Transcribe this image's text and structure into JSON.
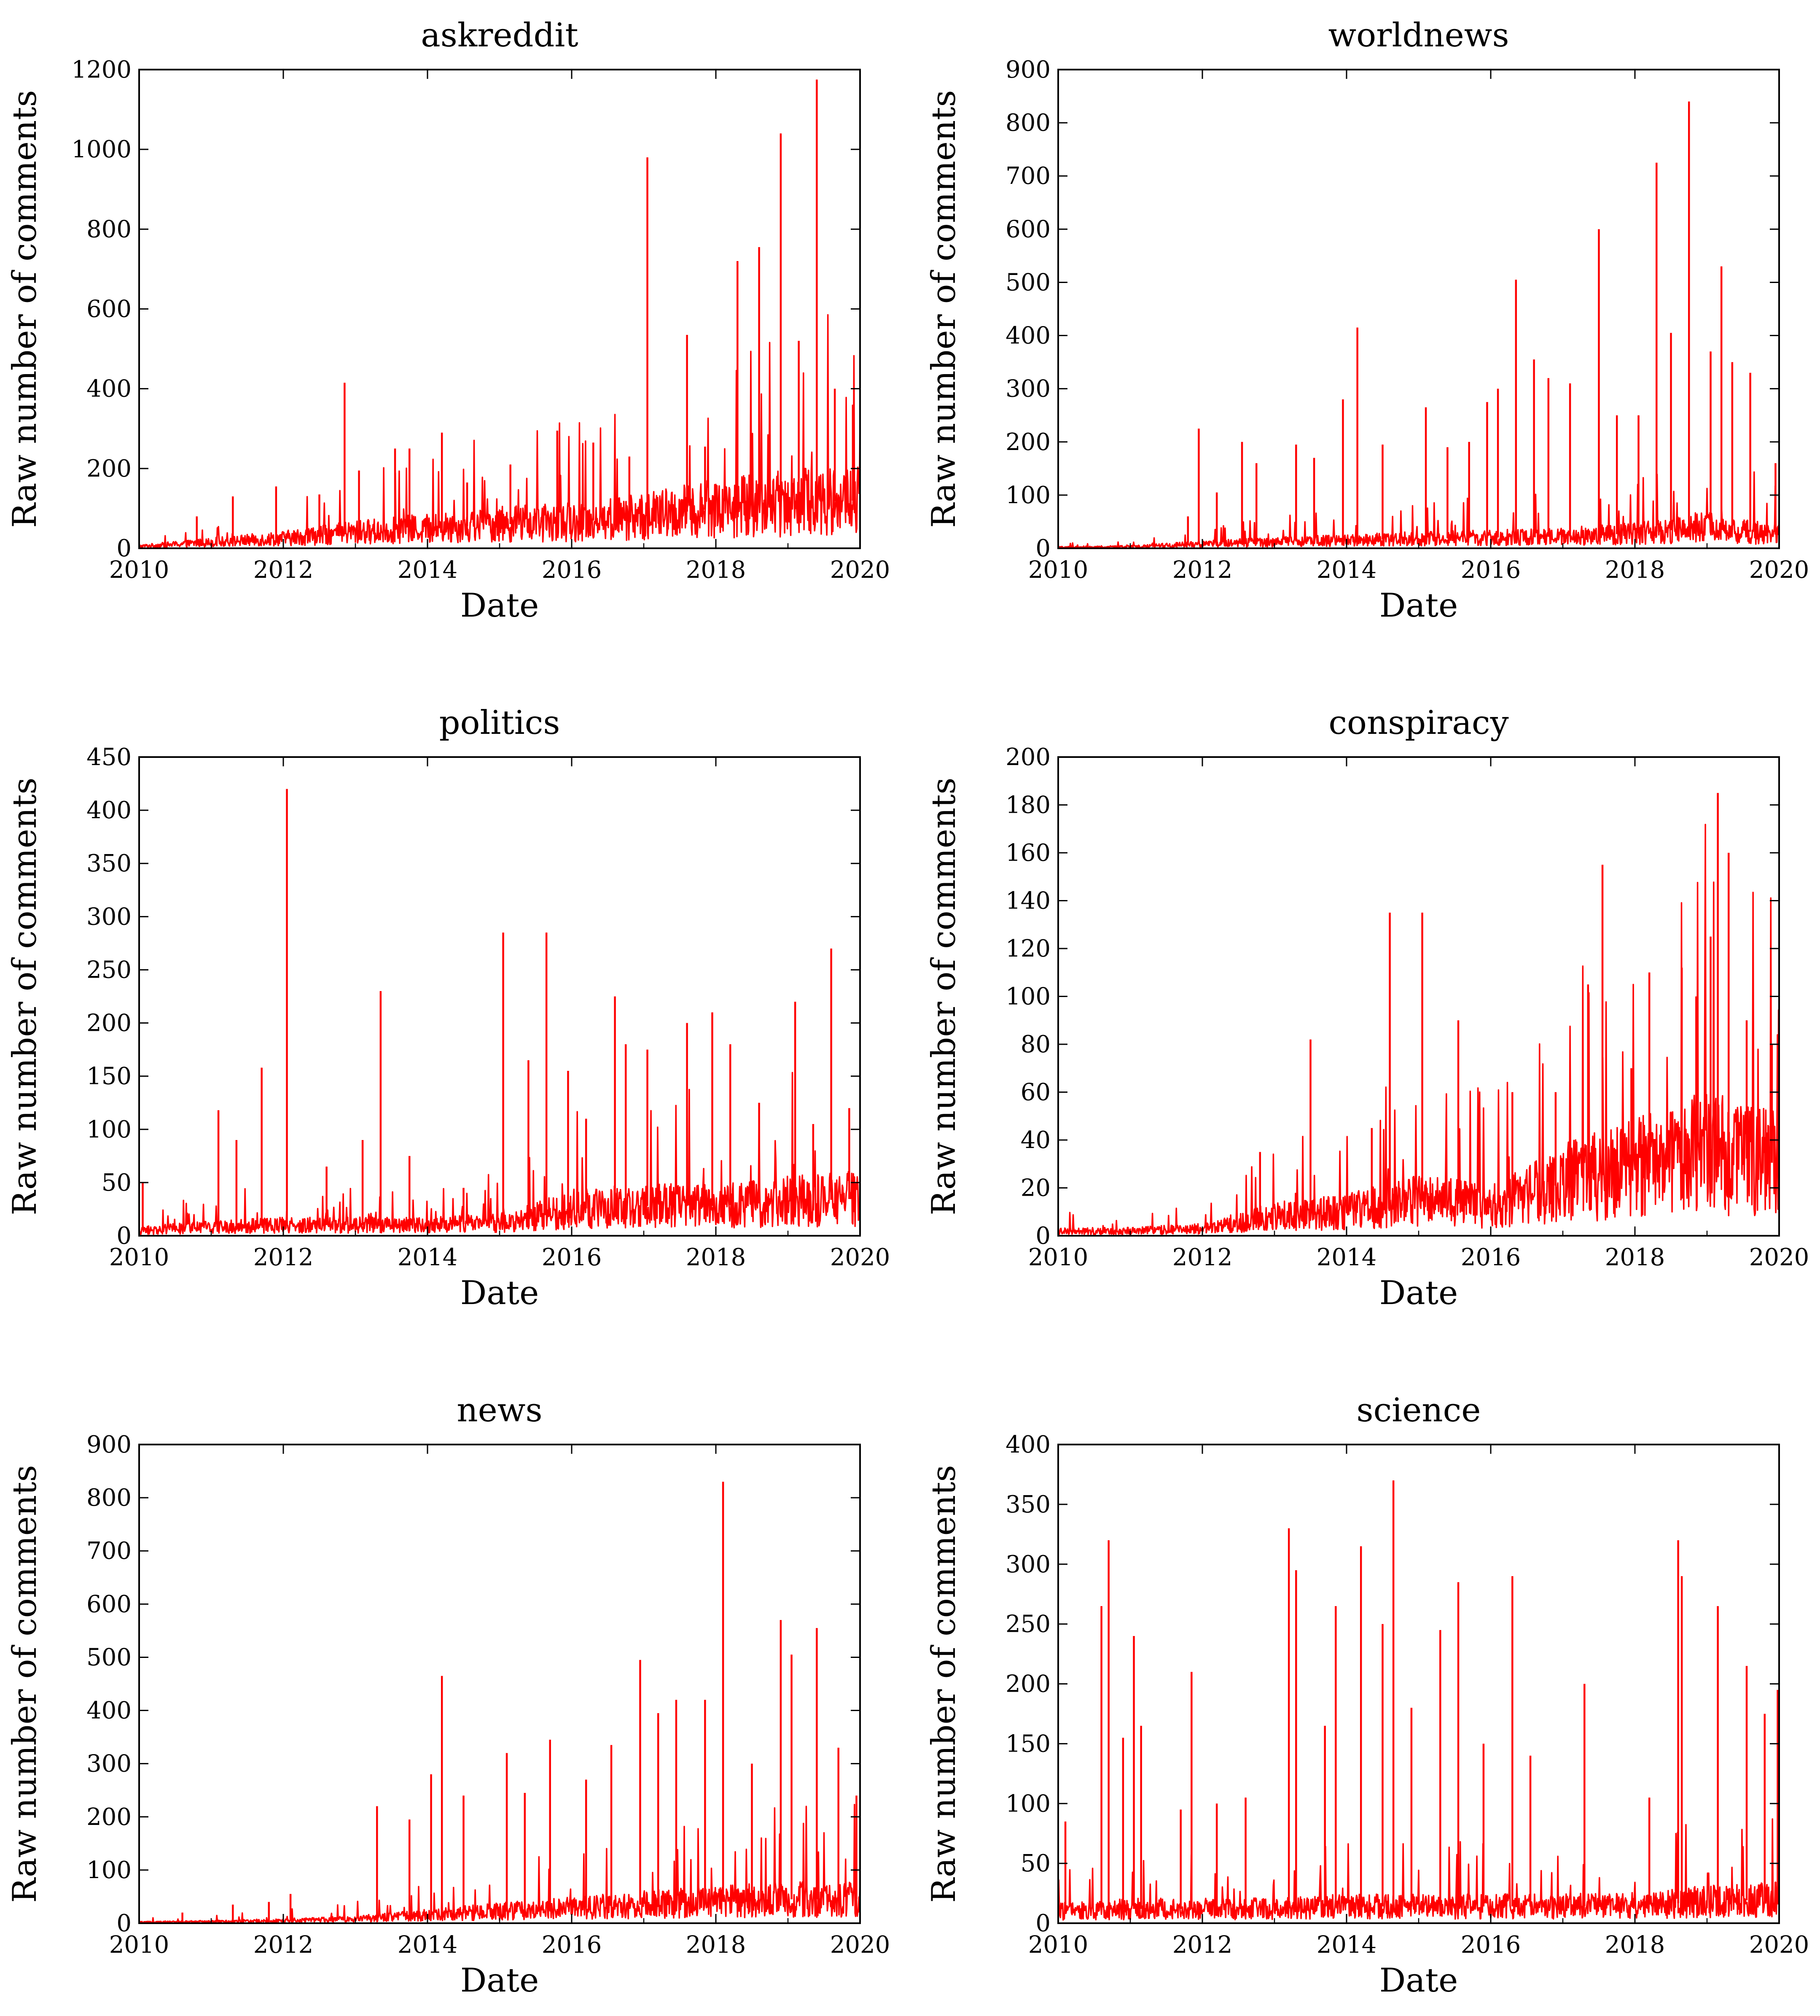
{
  "figure": {
    "x_axis_label": "Date",
    "y_axis_label": "Raw number of comments",
    "series_color": "#ff0000"
  },
  "chart_data": [
    {
      "type": "line",
      "title": "askreddit",
      "xlabel": "Date",
      "ylabel": "Raw number of comments",
      "xlim": [
        2010,
        2020
      ],
      "ylim": [
        0,
        1200
      ],
      "xticks": [
        "2010",
        "2012",
        "2014",
        "2016",
        "2018",
        "2020"
      ],
      "yticks": [
        "0",
        "200",
        "400",
        "600",
        "800",
        "1000",
        "1200"
      ],
      "baseline": [
        [
          2010,
          5
        ],
        [
          2011,
          15
        ],
        [
          2012,
          25
        ],
        [
          2013,
          40
        ],
        [
          2014,
          50
        ],
        [
          2015,
          60
        ],
        [
          2016,
          65
        ],
        [
          2017,
          80
        ],
        [
          2018,
          100
        ],
        [
          2019,
          115
        ],
        [
          2020,
          120
        ]
      ],
      "peaks": [
        [
          2010.8,
          80
        ],
        [
          2011.3,
          130
        ],
        [
          2011.9,
          155
        ],
        [
          2012.5,
          135
        ],
        [
          2012.85,
          415
        ],
        [
          2013.05,
          195
        ],
        [
          2013.55,
          250
        ],
        [
          2013.75,
          250
        ],
        [
          2014.2,
          290
        ],
        [
          2014.55,
          165
        ],
        [
          2015.15,
          210
        ],
        [
          2015.8,
          295
        ],
        [
          2016.3,
          265
        ],
        [
          2016.8,
          230
        ],
        [
          2017.05,
          980
        ],
        [
          2017.6,
          535
        ],
        [
          2017.85,
          255
        ],
        [
          2018.3,
          720
        ],
        [
          2018.6,
          755
        ],
        [
          2018.9,
          1040
        ],
        [
          2019.15,
          520
        ],
        [
          2019.4,
          1175
        ],
        [
          2019.65,
          400
        ],
        [
          2019.9,
          360
        ]
      ]
    },
    {
      "type": "line",
      "title": "worldnews",
      "xlabel": "Date",
      "ylabel": "Raw number of comments",
      "xlim": [
        2010,
        2020
      ],
      "ylim": [
        0,
        900
      ],
      "xticks": [
        "2010",
        "2012",
        "2014",
        "2016",
        "2018",
        "2020"
      ],
      "yticks": [
        "0",
        "100",
        "200",
        "300",
        "400",
        "500",
        "600",
        "700",
        "800",
        "900"
      ],
      "baseline": [
        [
          2010,
          2
        ],
        [
          2011,
          3
        ],
        [
          2012,
          8
        ],
        [
          2013,
          12
        ],
        [
          2014,
          15
        ],
        [
          2015,
          18
        ],
        [
          2016,
          20
        ],
        [
          2017,
          22
        ],
        [
          2018,
          28
        ],
        [
          2019,
          40
        ],
        [
          2020,
          25
        ]
      ],
      "peaks": [
        [
          2011.8,
          60
        ],
        [
          2011.95,
          225
        ],
        [
          2012.2,
          105
        ],
        [
          2012.55,
          200
        ],
        [
          2012.75,
          160
        ],
        [
          2013.3,
          195
        ],
        [
          2013.55,
          170
        ],
        [
          2013.95,
          280
        ],
        [
          2014.15,
          415
        ],
        [
          2014.5,
          195
        ],
        [
          2015.1,
          265
        ],
        [
          2015.4,
          190
        ],
        [
          2015.7,
          200
        ],
        [
          2015.95,
          275
        ],
        [
          2016.1,
          300
        ],
        [
          2016.35,
          505
        ],
        [
          2016.6,
          355
        ],
        [
          2016.8,
          320
        ],
        [
          2017.1,
          310
        ],
        [
          2017.5,
          600
        ],
        [
          2017.75,
          250
        ],
        [
          2018.05,
          250
        ],
        [
          2018.3,
          725
        ],
        [
          2018.5,
          405
        ],
        [
          2018.75,
          840
        ],
        [
          2019.05,
          370
        ],
        [
          2019.2,
          530
        ],
        [
          2019.35,
          350
        ],
        [
          2019.6,
          330
        ],
        [
          2019.95,
          160
        ]
      ]
    },
    {
      "type": "line",
      "title": "politics",
      "xlabel": "Date",
      "ylabel": "Raw number of comments",
      "xlim": [
        2010,
        2020
      ],
      "ylim": [
        0,
        450
      ],
      "xticks": [
        "2010",
        "2012",
        "2014",
        "2016",
        "2018",
        "2020"
      ],
      "yticks": [
        "0",
        "50",
        "100",
        "150",
        "200",
        "250",
        "300",
        "350",
        "400",
        "450"
      ],
      "baseline": [
        [
          2010,
          5
        ],
        [
          2011,
          8
        ],
        [
          2012,
          10
        ],
        [
          2013,
          10
        ],
        [
          2014,
          10
        ],
        [
          2015,
          12
        ],
        [
          2016,
          25
        ],
        [
          2017,
          28
        ],
        [
          2018,
          28
        ],
        [
          2019,
          32
        ],
        [
          2020,
          35
        ]
      ],
      "peaks": [
        [
          2010.05,
          50
        ],
        [
          2011.1,
          118
        ],
        [
          2011.35,
          90
        ],
        [
          2011.7,
          158
        ],
        [
          2012.05,
          420
        ],
        [
          2012.6,
          65
        ],
        [
          2013.1,
          90
        ],
        [
          2013.35,
          230
        ],
        [
          2013.75,
          75
        ],
        [
          2014.5,
          45
        ],
        [
          2015.05,
          285
        ],
        [
          2015.4,
          165
        ],
        [
          2015.65,
          285
        ],
        [
          2015.95,
          155
        ],
        [
          2016.2,
          110
        ],
        [
          2016.6,
          225
        ],
        [
          2016.75,
          180
        ],
        [
          2017.05,
          175
        ],
        [
          2017.6,
          200
        ],
        [
          2017.95,
          210
        ],
        [
          2018.2,
          180
        ],
        [
          2018.6,
          125
        ],
        [
          2019.1,
          220
        ],
        [
          2019.35,
          105
        ],
        [
          2019.6,
          270
        ],
        [
          2019.85,
          120
        ]
      ]
    },
    {
      "type": "line",
      "title": "conspiracy",
      "xlabel": "Date",
      "ylabel": "Raw number of comments",
      "xlim": [
        2010,
        2020
      ],
      "ylim": [
        0,
        200
      ],
      "xticks": [
        "2010",
        "2012",
        "2014",
        "2016",
        "2018",
        "2020"
      ],
      "yticks": [
        "0",
        "20",
        "40",
        "60",
        "80",
        "100",
        "120",
        "140",
        "160",
        "180",
        "200"
      ],
      "baseline": [
        [
          2010,
          2
        ],
        [
          2011,
          2
        ],
        [
          2012,
          3
        ],
        [
          2013,
          8
        ],
        [
          2014,
          10
        ],
        [
          2015,
          15
        ],
        [
          2016,
          12
        ],
        [
          2017,
          22
        ],
        [
          2018,
          28
        ],
        [
          2019,
          35
        ],
        [
          2020,
          30
        ]
      ],
      "peaks": [
        [
          2012.8,
          35
        ],
        [
          2013.5,
          82
        ],
        [
          2014.35,
          45
        ],
        [
          2014.6,
          135
        ],
        [
          2015.05,
          135
        ],
        [
          2015.55,
          90
        ],
        [
          2016.3,
          60
        ],
        [
          2016.9,
          60
        ],
        [
          2017.35,
          105
        ],
        [
          2017.55,
          155
        ],
        [
          2017.95,
          70
        ],
        [
          2018.2,
          110
        ],
        [
          2018.65,
          112
        ],
        [
          2018.85,
          100
        ],
        [
          2019.05,
          125
        ],
        [
          2019.15,
          185
        ],
        [
          2019.3,
          160
        ],
        [
          2019.55,
          90
        ],
        [
          2019.9,
          80
        ]
      ]
    },
    {
      "type": "line",
      "title": "news",
      "xlabel": "Date",
      "ylabel": "Raw number of comments",
      "xlim": [
        2010,
        2020
      ],
      "ylim": [
        0,
        900
      ],
      "xticks": [
        "2010",
        "2012",
        "2014",
        "2016",
        "2018",
        "2020"
      ],
      "yticks": [
        "0",
        "100",
        "200",
        "300",
        "400",
        "500",
        "600",
        "700",
        "800",
        "900"
      ],
      "baseline": [
        [
          2010,
          2
        ],
        [
          2011,
          3
        ],
        [
          2012,
          5
        ],
        [
          2013,
          8
        ],
        [
          2014,
          15
        ],
        [
          2015,
          22
        ],
        [
          2016,
          28
        ],
        [
          2017,
          35
        ],
        [
          2018,
          40
        ],
        [
          2019,
          45
        ],
        [
          2020,
          45
        ]
      ],
      "peaks": [
        [
          2010.6,
          20
        ],
        [
          2011.3,
          35
        ],
        [
          2011.8,
          40
        ],
        [
          2012.1,
          55
        ],
        [
          2013.3,
          220
        ],
        [
          2013.75,
          195
        ],
        [
          2014.05,
          280
        ],
        [
          2014.2,
          465
        ],
        [
          2014.5,
          240
        ],
        [
          2015.1,
          320
        ],
        [
          2015.35,
          245
        ],
        [
          2015.7,
          345
        ],
        [
          2016.2,
          270
        ],
        [
          2016.55,
          335
        ],
        [
          2016.95,
          495
        ],
        [
          2017.2,
          395
        ],
        [
          2017.45,
          420
        ],
        [
          2017.85,
          420
        ],
        [
          2018.1,
          830
        ],
        [
          2018.5,
          300
        ],
        [
          2018.9,
          570
        ],
        [
          2019.05,
          505
        ],
        [
          2019.4,
          555
        ],
        [
          2019.7,
          330
        ],
        [
          2019.95,
          240
        ]
      ]
    },
    {
      "type": "line",
      "title": "science",
      "xlabel": "Date",
      "ylabel": "Raw number of comments",
      "xlim": [
        2010,
        2020
      ],
      "ylim": [
        0,
        400
      ],
      "xticks": [
        "2010",
        "2012",
        "2014",
        "2016",
        "2018",
        "2020"
      ],
      "yticks": [
        "0",
        "50",
        "100",
        "150",
        "200",
        "250",
        "300",
        "350",
        "400"
      ],
      "baseline": [
        [
          2010,
          10
        ],
        [
          2011,
          12
        ],
        [
          2012,
          12
        ],
        [
          2013,
          12
        ],
        [
          2014,
          14
        ],
        [
          2015,
          14
        ],
        [
          2016,
          14
        ],
        [
          2017,
          14
        ],
        [
          2018,
          15
        ],
        [
          2019,
          18
        ],
        [
          2020,
          20
        ]
      ],
      "peaks": [
        [
          2010.1,
          85
        ],
        [
          2010.6,
          265
        ],
        [
          2010.7,
          320
        ],
        [
          2010.9,
          155
        ],
        [
          2011.05,
          240
        ],
        [
          2011.15,
          165
        ],
        [
          2011.7,
          95
        ],
        [
          2011.85,
          210
        ],
        [
          2012.2,
          100
        ],
        [
          2012.6,
          105
        ],
        [
          2013.2,
          330
        ],
        [
          2013.3,
          295
        ],
        [
          2013.85,
          265
        ],
        [
          2013.7,
          165
        ],
        [
          2014.2,
          315
        ],
        [
          2014.5,
          250
        ],
        [
          2014.65,
          370
        ],
        [
          2014.9,
          180
        ],
        [
          2015.3,
          245
        ],
        [
          2015.55,
          285
        ],
        [
          2015.9,
          150
        ],
        [
          2016.3,
          290
        ],
        [
          2016.55,
          140
        ],
        [
          2017.3,
          200
        ],
        [
          2018.2,
          105
        ],
        [
          2018.6,
          320
        ],
        [
          2018.65,
          290
        ],
        [
          2019.15,
          265
        ],
        [
          2019.55,
          215
        ],
        [
          2019.8,
          175
        ],
        [
          2019.98,
          195
        ]
      ]
    }
  ]
}
